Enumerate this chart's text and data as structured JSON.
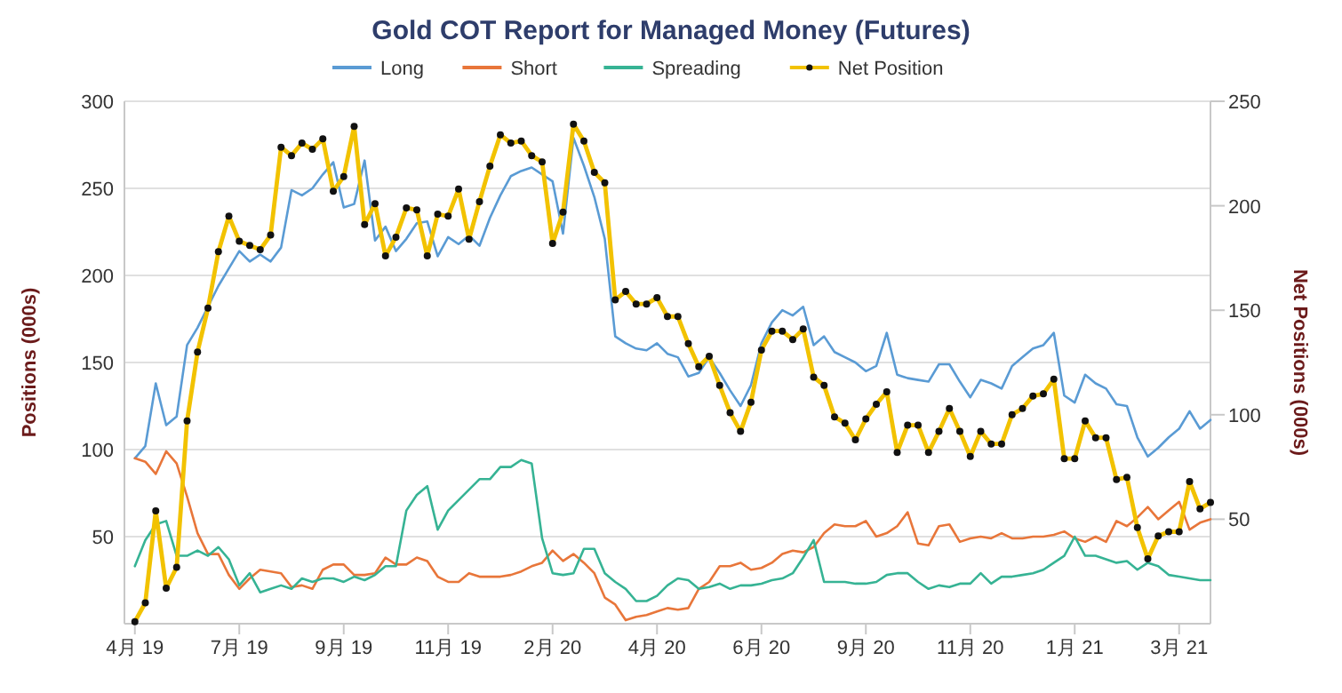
{
  "chart_data": {
    "type": "line",
    "title": "Gold COT Report for Managed Money (Futures)",
    "ylabel": "Positions (000s)",
    "y2label": "Net Positions (000s)",
    "categories": [
      "4月 19",
      null,
      null,
      null,
      null,
      null,
      null,
      null,
      null,
      null,
      "7月 19",
      null,
      null,
      null,
      null,
      null,
      null,
      null,
      null,
      null,
      "9月 19",
      null,
      null,
      null,
      null,
      null,
      null,
      null,
      null,
      null,
      "11月 19",
      null,
      null,
      null,
      null,
      null,
      null,
      null,
      null,
      null,
      "2月 20",
      null,
      null,
      null,
      null,
      null,
      null,
      null,
      null,
      null,
      "4月 20",
      null,
      null,
      null,
      null,
      null,
      null,
      null,
      null,
      null,
      "6月 20",
      null,
      null,
      null,
      null,
      null,
      null,
      null,
      null,
      null,
      "9月 20",
      null,
      null,
      null,
      null,
      null,
      null,
      null,
      null,
      null,
      "11月 20",
      null,
      null,
      null,
      null,
      null,
      null,
      null,
      null,
      null,
      "1月 21",
      null,
      null,
      null,
      null,
      null,
      null,
      null,
      null,
      null,
      "3月 21",
      null,
      null,
      null
    ],
    "series": [
      {
        "name": "Long",
        "color": "#5a9bd4",
        "values": [
          95,
          102,
          138,
          114,
          119,
          160,
          170,
          182,
          194,
          204,
          214,
          208,
          212,
          208,
          216,
          249,
          246,
          250,
          258,
          265,
          239,
          241,
          266,
          220,
          228,
          214,
          221,
          230,
          231,
          211,
          222,
          218,
          223,
          217,
          233,
          246,
          257,
          260,
          262,
          258,
          254,
          224,
          279,
          263,
          245,
          221,
          165,
          161,
          158,
          157,
          161,
          155,
          153,
          142,
          144,
          153,
          144,
          134,
          125,
          137,
          161,
          173,
          180,
          177,
          182,
          160,
          165,
          156,
          153,
          150,
          145,
          148,
          167,
          143,
          141,
          140,
          139,
          149,
          149,
          139,
          130,
          140,
          138,
          135,
          148,
          153,
          158,
          160,
          167,
          131,
          127,
          143,
          138,
          135,
          126,
          125,
          107,
          96,
          101,
          107,
          112,
          122,
          112,
          117
        ]
      },
      {
        "name": "Short",
        "color": "#e8763a",
        "values": [
          95,
          93,
          86,
          99,
          92,
          73,
          52,
          40,
          40,
          28,
          20,
          26,
          31,
          30,
          29,
          21,
          22,
          20,
          31,
          34,
          34,
          28,
          28,
          29,
          38,
          34,
          34,
          38,
          36,
          27,
          24,
          24,
          29,
          27,
          27,
          27,
          28,
          30,
          33,
          35,
          42,
          36,
          40,
          35,
          29,
          15,
          11,
          2,
          4,
          5,
          7,
          9,
          8,
          9,
          20,
          24,
          33,
          33,
          35,
          31,
          32,
          35,
          40,
          42,
          41,
          44,
          52,
          57,
          56,
          56,
          59,
          50,
          52,
          56,
          64,
          46,
          45,
          56,
          57,
          47,
          49,
          50,
          49,
          52,
          49,
          49,
          50,
          50,
          51,
          53,
          49,
          47,
          50,
          47,
          59,
          56,
          61,
          67,
          60,
          65,
          70,
          54,
          58,
          60
        ]
      },
      {
        "name": "Spreading",
        "color": "#36b394",
        "values": [
          33,
          48,
          57,
          59,
          39,
          39,
          42,
          39,
          44,
          37,
          22,
          29,
          18,
          20,
          22,
          20,
          26,
          24,
          26,
          26,
          24,
          27,
          25,
          28,
          33,
          33,
          65,
          74,
          79,
          54,
          65,
          71,
          77,
          83,
          83,
          90,
          90,
          94,
          92,
          49,
          29,
          28,
          29,
          43,
          43,
          29,
          24,
          20,
          13,
          13,
          16,
          22,
          26,
          25,
          20,
          21,
          23,
          20,
          22,
          22,
          23,
          25,
          26,
          29,
          38,
          48,
          24,
          24,
          24,
          23,
          23,
          24,
          28,
          29,
          29,
          24,
          20,
          22,
          21,
          23,
          23,
          29,
          23,
          27,
          27,
          28,
          29,
          31,
          35,
          39,
          50,
          39,
          39,
          37,
          35,
          36,
          31,
          35,
          33,
          28,
          27,
          26,
          25,
          25
        ]
      },
      {
        "name": "Net Position",
        "color": "#f2c200",
        "axis": "y2",
        "marker": "circle",
        "values": [
          1,
          10,
          54,
          17,
          27,
          97,
          130,
          151,
          178,
          195,
          183,
          181,
          179,
          186,
          228,
          224,
          230,
          227,
          232,
          207,
          214,
          238,
          191,
          201,
          176,
          185,
          199,
          198,
          176,
          196,
          195,
          208,
          184,
          202,
          219,
          234,
          230,
          231,
          224,
          221,
          182,
          197,
          239,
          231,
          216,
          211,
          155,
          159,
          153,
          153,
          156,
          147,
          147,
          134,
          123,
          128,
          114,
          101,
          92,
          106,
          131,
          140,
          140,
          136,
          141,
          118,
          114,
          99,
          96,
          88,
          98,
          105,
          111,
          82,
          95,
          95,
          82,
          92,
          103,
          92,
          80,
          92,
          86,
          86,
          100,
          103,
          109,
          110,
          117,
          79,
          79,
          97,
          89,
          89,
          69,
          70,
          46,
          31,
          42,
          44,
          44,
          68,
          55,
          58
        ]
      }
    ],
    "ylim": [
      0,
      300
    ],
    "yticks": [
      50,
      100,
      150,
      200,
      250,
      300
    ],
    "y2lim": [
      0,
      250
    ],
    "y2ticks": [
      50,
      100,
      150,
      200,
      250
    ],
    "grid": "y",
    "legend": "top",
    "line_style": "solid"
  }
}
